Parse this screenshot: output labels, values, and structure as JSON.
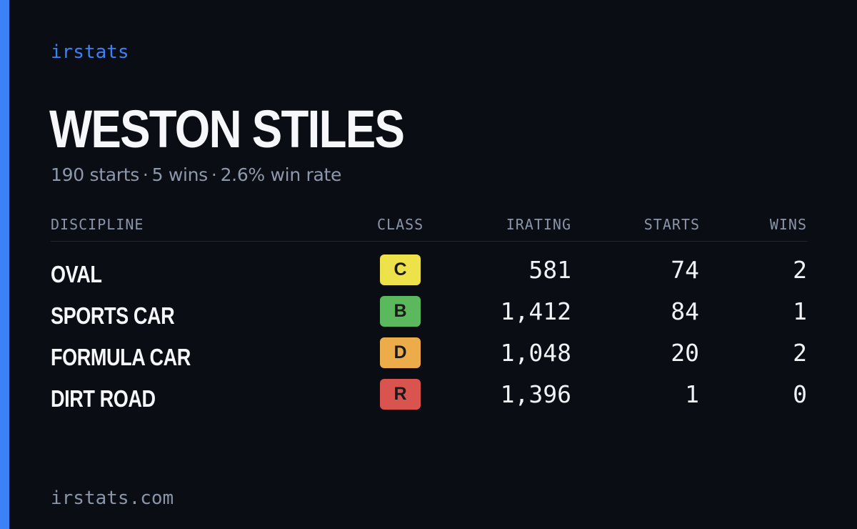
{
  "brand": "irstats",
  "driver": {
    "name": "WESTON STILES",
    "summary": {
      "starts": "190 starts",
      "wins": "5 wins",
      "win_rate": "2.6% win rate",
      "separator": "·"
    }
  },
  "table": {
    "headers": {
      "discipline": "DISCIPLINE",
      "class": "CLASS",
      "irating": "IRATING",
      "starts": "STARTS",
      "wins": "WINS"
    },
    "rows": [
      {
        "discipline": "OVAL",
        "class": "C",
        "class_color": "#ede24a",
        "irating": "581",
        "starts": "74",
        "wins": "2"
      },
      {
        "discipline": "SPORTS CAR",
        "class": "B",
        "class_color": "#5cb85c",
        "irating": "1,412",
        "starts": "84",
        "wins": "1"
      },
      {
        "discipline": "FORMULA CAR",
        "class": "D",
        "class_color": "#ecac4a",
        "irating": "1,048",
        "starts": "20",
        "wins": "2"
      },
      {
        "discipline": "DIRT ROAD",
        "class": "R",
        "class_color": "#d9534f",
        "irating": "1,396",
        "starts": "1",
        "wins": "0"
      }
    ]
  },
  "footer": {
    "url": "irstats.com"
  },
  "colors": {
    "accent": "#3b82f6",
    "background": "#0a0d14"
  }
}
